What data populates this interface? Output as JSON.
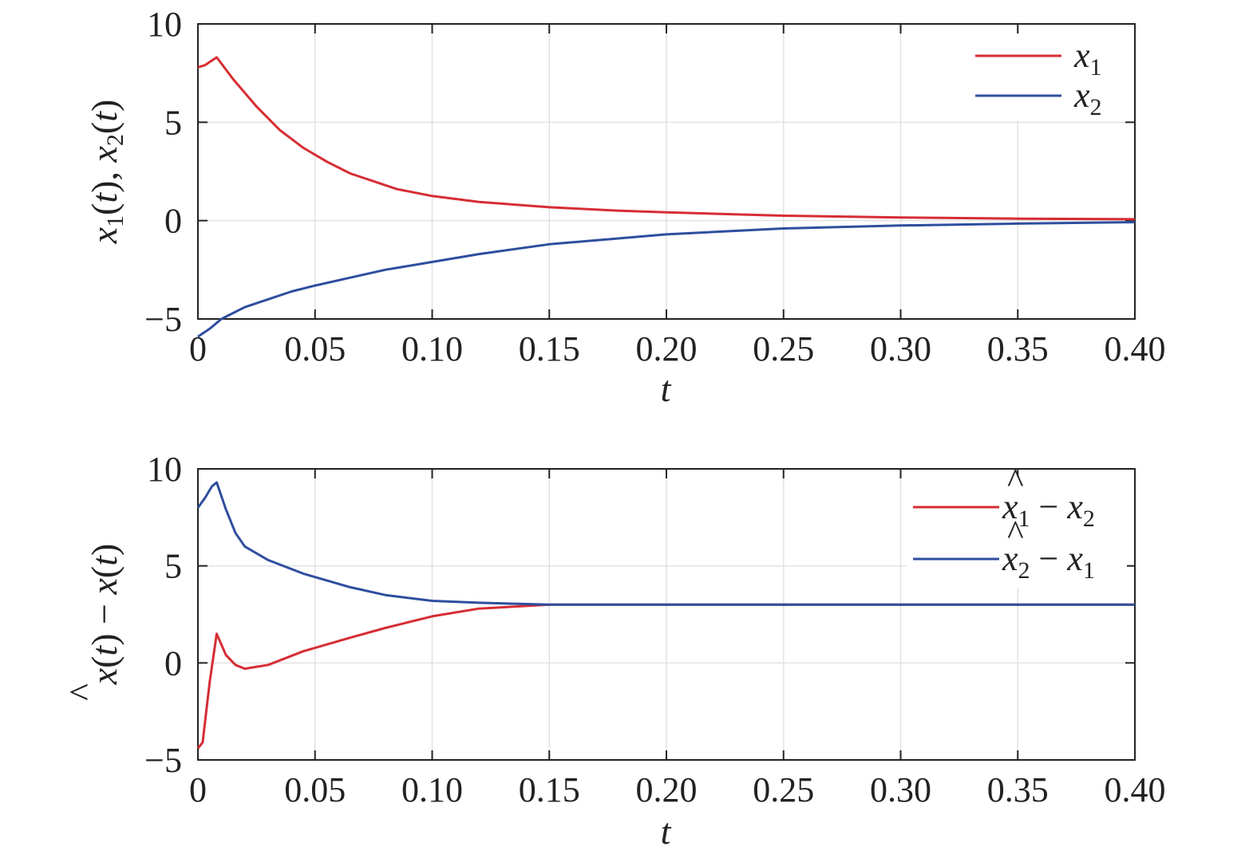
{
  "colors": {
    "red": "#d62d34",
    "blue": "#2e4e9e"
  },
  "chart_data": [
    {
      "type": "line",
      "xlabel": "t",
      "ylabel": "x1(t), x2(t)",
      "xlim": [
        0,
        0.4
      ],
      "ylim": [
        -5,
        10
      ],
      "xticks": [
        0,
        0.05,
        0.1,
        0.15,
        0.2,
        0.25,
        0.3,
        0.35,
        0.4
      ],
      "xtick_labels": [
        "0",
        "0.05",
        "0.10",
        "0.15",
        "0.20",
        "0.25",
        "0.30",
        "0.35",
        "0.40"
      ],
      "yticks": [
        -5,
        0,
        5,
        10
      ],
      "ytick_labels": [
        "−5",
        "0",
        "5",
        "10"
      ],
      "grid": true,
      "legend_position": "top-right",
      "series": [
        {
          "name": "x1",
          "color": "#d62d34",
          "x": [
            0,
            0.003,
            0.008,
            0.015,
            0.025,
            0.035,
            0.045,
            0.055,
            0.065,
            0.075,
            0.085,
            0.1,
            0.12,
            0.15,
            0.18,
            0.2,
            0.25,
            0.3,
            0.35,
            0.4
          ],
          "y": [
            7.8,
            7.9,
            8.3,
            7.2,
            5.8,
            4.6,
            3.7,
            3.0,
            2.4,
            2.0,
            1.6,
            1.25,
            0.95,
            0.68,
            0.5,
            0.42,
            0.25,
            0.16,
            0.1,
            0.07
          ]
        },
        {
          "name": "x2",
          "color": "#2e4e9e",
          "x": [
            0,
            0.005,
            0.01,
            0.02,
            0.03,
            0.04,
            0.05,
            0.065,
            0.08,
            0.1,
            0.12,
            0.15,
            0.18,
            0.2,
            0.25,
            0.3,
            0.35,
            0.4
          ],
          "y": [
            -5.9,
            -5.5,
            -5.0,
            -4.4,
            -4.0,
            -3.6,
            -3.3,
            -2.9,
            -2.5,
            -2.1,
            -1.7,
            -1.2,
            -0.9,
            -0.7,
            -0.4,
            -0.25,
            -0.15,
            -0.08
          ]
        }
      ]
    },
    {
      "type": "line",
      "xlabel": "t",
      "ylabel": "x̂(t) − x(t)",
      "xlim": [
        0,
        0.4
      ],
      "ylim": [
        -5,
        10
      ],
      "xticks": [
        0,
        0.05,
        0.1,
        0.15,
        0.2,
        0.25,
        0.3,
        0.35,
        0.4
      ],
      "xtick_labels": [
        "0",
        "0.05",
        "0.10",
        "0.15",
        "0.20",
        "0.25",
        "0.30",
        "0.35",
        "0.40"
      ],
      "yticks": [
        -5,
        0,
        5,
        10
      ],
      "ytick_labels": [
        "−5",
        "0",
        "5",
        "10"
      ],
      "grid": true,
      "legend_position": "top-right",
      "series": [
        {
          "name": "x̂1 − x2",
          "color": "#d62d34",
          "x": [
            0,
            0.002,
            0.005,
            0.008,
            0.012,
            0.016,
            0.02,
            0.03,
            0.045,
            0.065,
            0.08,
            0.1,
            0.12,
            0.15,
            0.18,
            0.2,
            0.25,
            0.3,
            0.35,
            0.4
          ],
          "y": [
            -4.4,
            -4.1,
            -1.0,
            1.5,
            0.4,
            -0.1,
            -0.3,
            -0.1,
            0.6,
            1.3,
            1.8,
            2.4,
            2.8,
            3.0,
            3.0,
            3.0,
            3.0,
            3.0,
            3.0,
            3.0
          ]
        },
        {
          "name": "x̂2 − x1",
          "color": "#2e4e9e",
          "x": [
            0,
            0.003,
            0.006,
            0.008,
            0.012,
            0.016,
            0.02,
            0.03,
            0.045,
            0.065,
            0.08,
            0.1,
            0.12,
            0.15,
            0.18,
            0.2,
            0.25,
            0.3,
            0.35,
            0.4
          ],
          "y": [
            8.0,
            8.5,
            9.1,
            9.3,
            7.9,
            6.7,
            6.0,
            5.3,
            4.6,
            3.9,
            3.5,
            3.2,
            3.1,
            3.0,
            3.0,
            3.0,
            3.0,
            3.0,
            3.0,
            3.0
          ]
        }
      ]
    }
  ]
}
